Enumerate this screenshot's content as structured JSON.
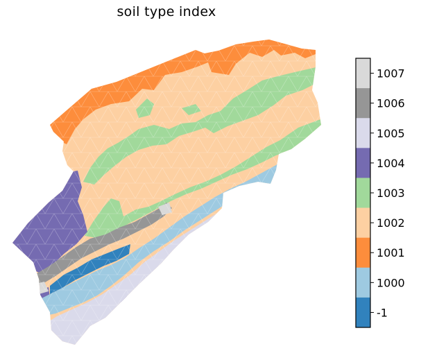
{
  "title": "soil type index",
  "colorbar": {
    "entries": [
      {
        "label": "1007",
        "color": "#d9d9d9"
      },
      {
        "label": "1006",
        "color": "#969696"
      },
      {
        "label": "1005",
        "color": "#dadaeb"
      },
      {
        "label": "1004",
        "color": "#756bb1"
      },
      {
        "label": "1003",
        "color": "#a1d99b"
      },
      {
        "label": "1002",
        "color": "#fdd0a2"
      },
      {
        "label": "1001",
        "color": "#fd8d3c"
      },
      {
        "label": "1000",
        "color": "#9ecae1"
      },
      {
        "label": "-1",
        "color": "#3182bd"
      }
    ]
  }
}
